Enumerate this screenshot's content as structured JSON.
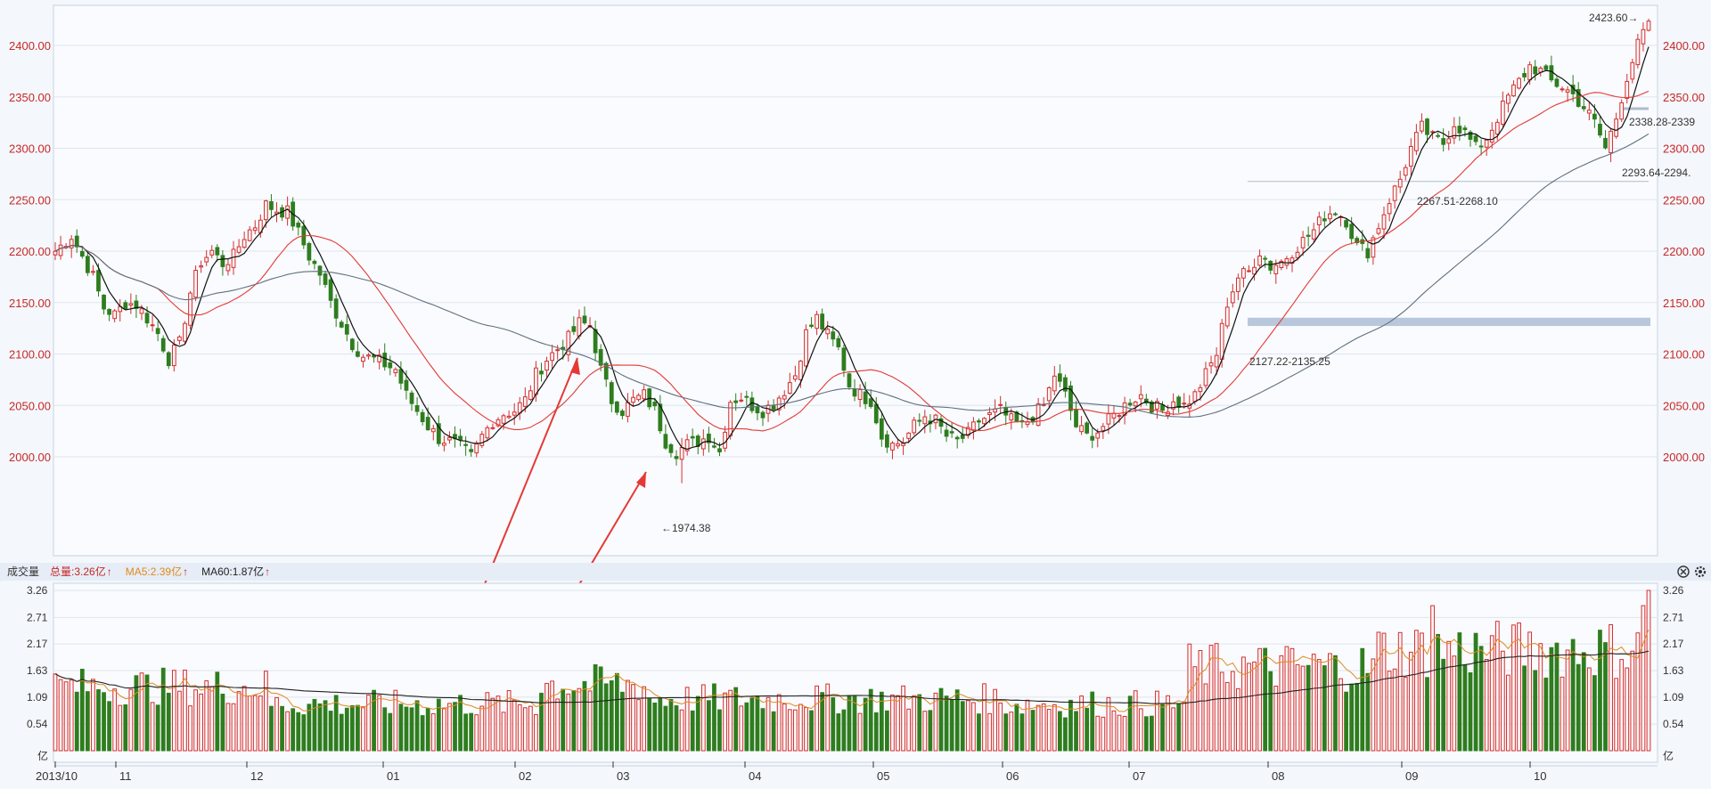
{
  "chart_data": {
    "type": "candlestick",
    "price_axis": {
      "ticks": [
        "2400.00",
        "2350.00",
        "2300.00",
        "2250.00",
        "2200.00",
        "2150.00",
        "2100.00",
        "2050.00",
        "2000.00"
      ]
    },
    "x_axis": {
      "ticks": [
        "2013/10",
        "11",
        "12",
        "01",
        "02",
        "03",
        "04",
        "05",
        "06",
        "07",
        "08",
        "09",
        "10"
      ]
    },
    "price_path": [
      [
        0,
        2200
      ],
      [
        3,
        2215
      ],
      [
        5,
        2195
      ],
      [
        7,
        2175
      ],
      [
        9,
        2145
      ],
      [
        11,
        2138
      ],
      [
        13,
        2150
      ],
      [
        15,
        2148
      ],
      [
        17,
        2135
      ],
      [
        19,
        2120
      ],
      [
        21,
        2095
      ],
      [
        23,
        2110
      ],
      [
        25,
        2160
      ],
      [
        27,
        2190
      ],
      [
        29,
        2200
      ],
      [
        31,
        2188
      ],
      [
        33,
        2195
      ],
      [
        35,
        2215
      ],
      [
        37,
        2225
      ],
      [
        39,
        2245
      ],
      [
        41,
        2240
      ],
      [
        43,
        2238
      ],
      [
        45,
        2218
      ],
      [
        47,
        2195
      ],
      [
        49,
        2178
      ],
      [
        51,
        2150
      ],
      [
        53,
        2130
      ],
      [
        55,
        2110
      ],
      [
        57,
        2098
      ],
      [
        59,
        2095
      ],
      [
        61,
        2090
      ],
      [
        63,
        2085
      ],
      [
        65,
        2060
      ],
      [
        67,
        2045
      ],
      [
        69,
        2030
      ],
      [
        71,
        2018
      ],
      [
        73,
        2015
      ],
      [
        75,
        2010
      ],
      [
        77,
        2000
      ],
      [
        79,
        2020
      ],
      [
        81,
        2035
      ],
      [
        83,
        2042
      ],
      [
        85,
        2045
      ],
      [
        87,
        2055
      ],
      [
        89,
        2080
      ],
      [
        91,
        2095
      ],
      [
        93,
        2105
      ],
      [
        95,
        2115
      ],
      [
        97,
        2130
      ],
      [
        99,
        2128
      ],
      [
        101,
        2085
      ],
      [
        103,
        2055
      ],
      [
        105,
        2045
      ],
      [
        107,
        2055
      ],
      [
        109,
        2060
      ],
      [
        111,
        2045
      ],
      [
        113,
        2015
      ],
      [
        115,
        2005
      ],
      [
        117,
        2012
      ],
      [
        119,
        2015
      ],
      [
        121,
        2020
      ],
      [
        123,
        2005
      ],
      [
        125,
        2055
      ],
      [
        127,
        2058
      ],
      [
        129,
        2050
      ],
      [
        131,
        2045
      ],
      [
        133,
        2052
      ],
      [
        135,
        2065
      ],
      [
        137,
        2080
      ],
      [
        139,
        2120
      ],
      [
        141,
        2135
      ],
      [
        143,
        2118
      ],
      [
        145,
        2105
      ],
      [
        147,
        2070
      ],
      [
        149,
        2060
      ],
      [
        151,
        2055
      ],
      [
        153,
        2020
      ],
      [
        155,
        2012
      ],
      [
        157,
        2015
      ],
      [
        159,
        2030
      ],
      [
        161,
        2040
      ],
      [
        163,
        2035
      ],
      [
        165,
        2020
      ],
      [
        167,
        2015
      ],
      [
        169,
        2022
      ],
      [
        171,
        2035
      ],
      [
        173,
        2040
      ],
      [
        175,
        2045
      ],
      [
        177,
        2035
      ],
      [
        179,
        2030
      ],
      [
        181,
        2040
      ],
      [
        183,
        2050
      ],
      [
        185,
        2080
      ],
      [
        187,
        2060
      ],
      [
        189,
        2030
      ],
      [
        191,
        2020
      ],
      [
        193,
        2025
      ],
      [
        195,
        2035
      ],
      [
        197,
        2045
      ],
      [
        199,
        2055
      ],
      [
        201,
        2060
      ],
      [
        203,
        2050
      ],
      [
        205,
        2045
      ],
      [
        207,
        2055
      ],
      [
        209,
        2050
      ],
      [
        211,
        2060
      ],
      [
        213,
        2080
      ],
      [
        215,
        2100
      ],
      [
        217,
        2150
      ],
      [
        219,
        2175
      ],
      [
        221,
        2180
      ],
      [
        223,
        2200
      ],
      [
        225,
        2185
      ],
      [
        227,
        2190
      ],
      [
        229,
        2200
      ],
      [
        231,
        2210
      ],
      [
        233,
        2220
      ],
      [
        235,
        2235
      ],
      [
        237,
        2240
      ],
      [
        239,
        2230
      ],
      [
        241,
        2205
      ],
      [
        243,
        2200
      ],
      [
        245,
        2225
      ],
      [
        247,
        2250
      ],
      [
        249,
        2270
      ],
      [
        251,
        2300
      ],
      [
        253,
        2320
      ],
      [
        255,
        2310
      ],
      [
        257,
        2305
      ],
      [
        259,
        2325
      ],
      [
        261,
        2315
      ],
      [
        263,
        2300
      ],
      [
        265,
        2310
      ],
      [
        267,
        2330
      ],
      [
        269,
        2350
      ],
      [
        271,
        2365
      ],
      [
        273,
        2380
      ],
      [
        275,
        2375
      ],
      [
        277,
        2365
      ],
      [
        279,
        2360
      ],
      [
        281,
        2352
      ],
      [
        283,
        2340
      ],
      [
        285,
        2325
      ],
      [
        287,
        2300
      ],
      [
        289,
        2330
      ],
      [
        291,
        2370
      ],
      [
        293,
        2400
      ],
      [
        295,
        2423.6
      ]
    ],
    "volume_axis": {
      "label": "亿",
      "ticks": [
        "3.26",
        "2.71",
        "2.17",
        "1.63",
        "1.09",
        "0.54"
      ]
    },
    "volume_legend": {
      "title": "成交量",
      "items": [
        {
          "text": "总量:3.26亿",
          "arrow": "↑",
          "color": "#c62828"
        },
        {
          "text": "MA5:2.39亿",
          "arrow": "↑",
          "color": "#e08a1e"
        },
        {
          "text": "MA60:1.87亿",
          "arrow": "↑",
          "color": "#222222"
        }
      ]
    },
    "annotations": {
      "high": "2423.60→",
      "low": "←1974.38",
      "zone1": "2127.22-2135.25",
      "zone2": "2267.51-2268.10",
      "zone3": "2338.28-2339",
      "zone4": "2293.64-2294."
    },
    "colors": {
      "up": "#d32f2f",
      "down": "#2e7d1e",
      "ma_short": "#111111",
      "ma_mid": "#e53935",
      "ma_long": "#607080",
      "volume_ma5": "#e08a1e",
      "zone": "#b8c7dc"
    }
  }
}
